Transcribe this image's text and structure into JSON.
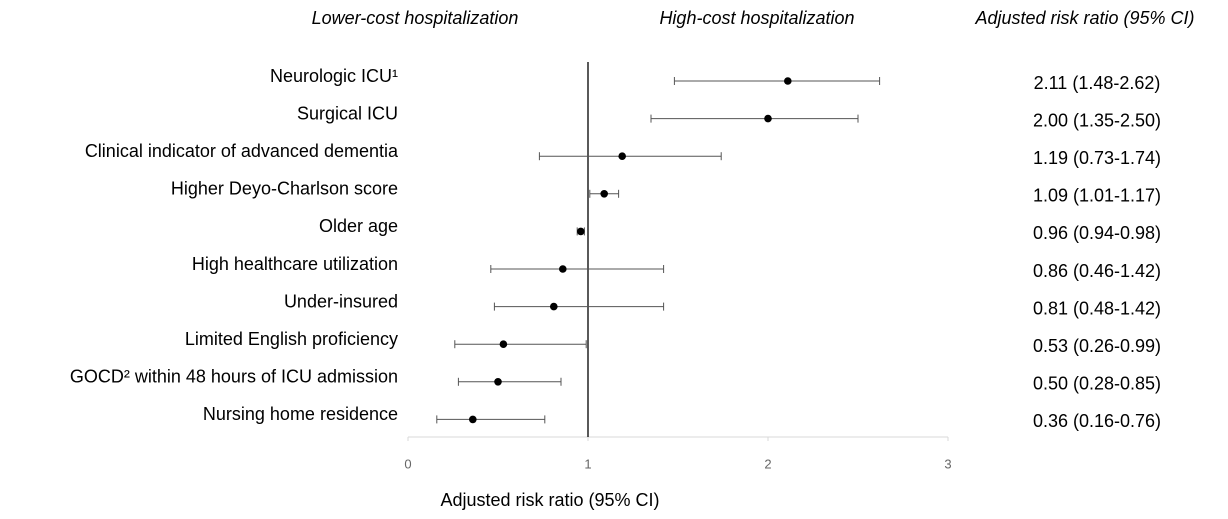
{
  "chart_data": {
    "type": "forest",
    "annotations": [
      "Lower-cost hospitalization",
      "High-cost hospitalization"
    ],
    "column_title": "Adjusted risk ratio (95% CI)",
    "xlabel": "Adjusted risk ratio (95% CI)",
    "categories": [
      "Neurologic ICU¹",
      "Surgical ICU",
      "Clinical indicator of advanced dementia",
      "Higher Deyo-Charlson score",
      "Older age",
      "High healthcare utilization",
      "Under-insured",
      "Limited English proficiency",
      "GOCD² within 48 hours of ICU admission",
      "Nursing home residence"
    ],
    "values": [
      2.11,
      2.0,
      1.19,
      1.09,
      0.96,
      0.86,
      0.81,
      0.53,
      0.5,
      0.36
    ],
    "lower": [
      1.48,
      1.35,
      0.73,
      1.01,
      0.94,
      0.46,
      0.48,
      0.26,
      0.28,
      0.16
    ],
    "upper": [
      2.62,
      2.5,
      1.74,
      1.17,
      0.98,
      1.42,
      1.42,
      0.99,
      0.85,
      0.76
    ],
    "value_labels": [
      "2.11 (1.48-2.62)",
      "2.00 (1.35-2.50)",
      "1.19 (0.73-1.74)",
      "1.09 (1.01-1.17)",
      "0.96 (0.94-0.98)",
      "0.86 (0.46-1.42)",
      "0.81 (0.48-1.42)",
      "0.53 (0.26-0.99)",
      "0.50 (0.28-0.85)",
      "0.36 (0.16-0.76)"
    ],
    "reference_line": 1,
    "xlim": [
      0,
      3
    ],
    "xticks": [
      0,
      1,
      2,
      3
    ],
    "color": "#000000",
    "whisker_color": "#555555"
  }
}
